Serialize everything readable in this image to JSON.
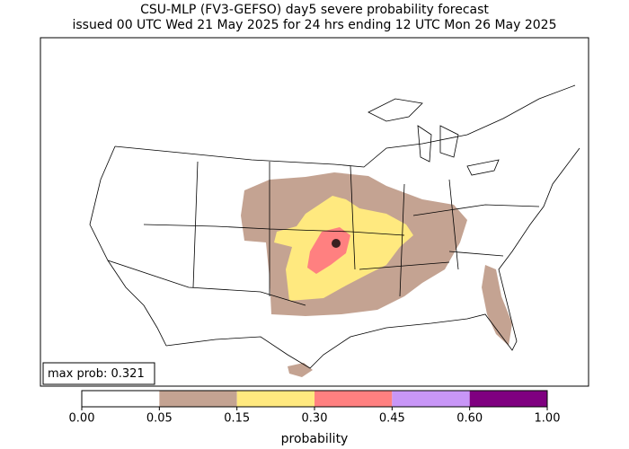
{
  "title": [
    "CSU-MLP (FV3-GEFSO) day5 severe probability forecast",
    "issued 00 UTC Wed 21 May 2025 for 24 hrs ending 12 UTC Mon 26 May 2025"
  ],
  "max_prob_label": "max prob:",
  "max_prob": 0.321,
  "colorbar": {
    "label": "probability",
    "ticks": [
      {
        "value": 0,
        "label": "0.00"
      },
      {
        "value": 0.05,
        "label": "0.05"
      },
      {
        "value": 0.15,
        "label": "0.15"
      },
      {
        "value": 0.3,
        "label": "0.30"
      },
      {
        "value": 0.45,
        "label": "0.45"
      },
      {
        "value": 0.6,
        "label": "0.60"
      },
      {
        "value": 1,
        "label": "1.00"
      }
    ],
    "colors": [
      "#ffffff",
      "#c4a392",
      "#ffe97f",
      "#ff8080",
      "#c896f7",
      "#7f0080"
    ]
  }
}
